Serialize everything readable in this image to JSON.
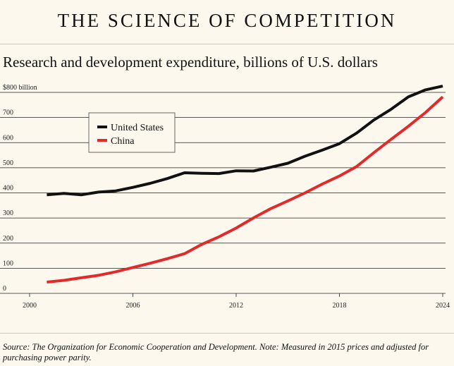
{
  "header": {
    "title": "THE SCIENCE OF COMPETITION",
    "subtitle": "Research and development expenditure, billions of U.S. dollars"
  },
  "footer": {
    "source": "Source: The Organization for Economic Cooperation and Development. Note: Measured in 2015 prices and adjusted for purchasing power parity."
  },
  "chart_data": {
    "type": "line",
    "title": "Research and development expenditure, billions of U.S. dollars",
    "xlabel": "",
    "ylabel": "",
    "xlim": [
      2000,
      2024
    ],
    "ylim": [
      0,
      800
    ],
    "grid": true,
    "legend_position": "top-left",
    "x_ticks": [
      "2000",
      "2006",
      "2012",
      "2018",
      "2024"
    ],
    "y_ticks": [
      "0",
      "100",
      "200",
      "300",
      "400",
      "500",
      "600",
      "700",
      "$800 billion"
    ],
    "series": [
      {
        "name": "United States",
        "color": "#111111",
        "x": [
          2001,
          2002,
          2003,
          2004,
          2005,
          2006,
          2007,
          2008,
          2009,
          2010,
          2011,
          2012,
          2013,
          2014,
          2015,
          2016,
          2017,
          2018,
          2019,
          2020,
          2021,
          2022,
          2023,
          2024
        ],
        "values": [
          392,
          398,
          392,
          403,
          408,
          422,
          438,
          457,
          480,
          478,
          477,
          488,
          487,
          502,
          518,
          546,
          570,
          596,
          638,
          690,
          733,
          782,
          810,
          825
        ]
      },
      {
        "name": "China",
        "color": "#e12b2b",
        "x": [
          2001,
          2002,
          2003,
          2004,
          2005,
          2006,
          2007,
          2008,
          2009,
          2010,
          2011,
          2012,
          2013,
          2014,
          2015,
          2016,
          2017,
          2018,
          2019,
          2020,
          2021,
          2022,
          2023,
          2024
        ],
        "values": [
          45,
          52,
          62,
          72,
          86,
          103,
          120,
          138,
          158,
          195,
          225,
          260,
          300,
          337,
          368,
          400,
          435,
          467,
          505,
          560,
          613,
          665,
          720,
          782
        ]
      }
    ]
  }
}
